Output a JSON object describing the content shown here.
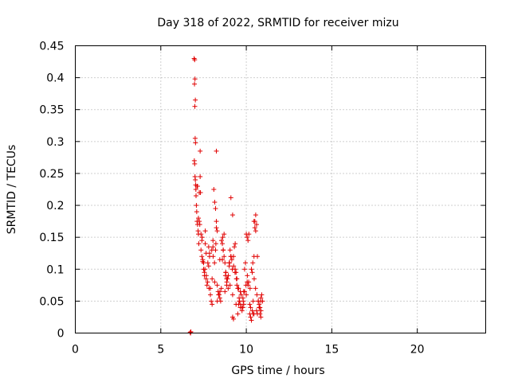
{
  "chart_data": {
    "type": "scatter",
    "title": "Day 318 of 2022, SRMTID for receiver mizu",
    "xlabel": "GPS time / hours",
    "ylabel": "SRMTID / TECUs",
    "xlim": [
      0,
      24
    ],
    "ylim": [
      0,
      0.45
    ],
    "xticks": [
      0,
      5,
      10,
      15,
      20
    ],
    "yticks": [
      0,
      0.05,
      0.1,
      0.15,
      0.2,
      0.25,
      0.3,
      0.35,
      0.4,
      0.45
    ],
    "xtick_labels": [
      "0",
      "5",
      "10",
      "15",
      "20"
    ],
    "ytick_labels": [
      "0",
      "0.05",
      "0.1",
      "0.15",
      "0.2",
      "0.25",
      "0.3",
      "0.35",
      "0.4",
      "0.45"
    ],
    "grid": true,
    "marker": "+",
    "color": "#e00000",
    "series": [
      {
        "name": "SRMTID",
        "x": [
          6.72,
          6.74,
          6.76,
          6.95,
          6.98,
          7.0,
          6.97,
          7.02,
          6.99,
          7.01,
          7.03,
          6.96,
          6.98,
          7.0,
          7.02,
          7.04,
          7.05,
          7.06,
          7.08,
          7.1,
          7.12,
          7.15,
          7.18,
          7.2,
          7.22,
          7.25,
          7.3,
          7.35,
          7.4,
          7.45,
          7.5,
          7.55,
          7.6,
          7.65,
          7.7,
          7.75,
          7.8,
          7.85,
          7.9,
          7.95,
          8.0,
          8.05,
          8.1,
          8.15,
          8.2,
          8.25,
          8.3,
          8.35,
          8.4,
          8.45,
          8.5,
          8.55,
          8.6,
          8.65,
          8.7,
          8.75,
          8.8,
          8.85,
          8.9,
          8.95,
          9.0,
          9.05,
          9.1,
          9.15,
          9.2,
          9.25,
          9.3,
          9.35,
          9.4,
          9.45,
          9.5,
          9.55,
          9.6,
          9.65,
          9.7,
          9.75,
          9.8,
          9.85,
          9.9,
          9.95,
          10.0,
          10.05,
          10.1,
          10.15,
          10.2,
          10.25,
          10.3,
          10.35,
          10.4,
          10.45,
          10.5,
          10.55,
          10.6,
          10.65,
          10.7,
          10.75,
          10.8,
          10.85,
          10.9,
          7.12,
          7.2,
          7.28,
          7.35,
          7.42,
          7.5,
          7.58,
          7.66,
          7.74,
          7.82,
          7.9,
          7.98,
          8.06,
          8.14,
          8.22,
          8.3,
          8.38,
          8.46,
          8.54,
          8.62,
          8.7,
          8.78,
          8.86,
          8.94,
          9.02,
          9.1,
          9.18,
          9.26,
          9.34,
          9.42,
          9.5,
          9.58,
          9.66,
          9.74,
          9.82,
          9.9,
          9.98,
          10.06,
          10.14,
          10.22,
          10.3,
          10.38,
          10.46,
          10.54,
          10.62,
          10.7,
          10.78,
          10.86,
          7.15,
          7.25,
          7.45,
          7.55,
          7.65,
          7.85,
          8.05,
          8.25,
          8.45,
          8.65,
          8.85,
          9.05,
          9.25,
          9.45,
          9.65,
          9.85,
          10.05,
          10.25,
          10.45,
          10.65,
          10.85,
          7.4,
          7.6,
          7.8,
          8.0,
          8.2,
          8.4,
          8.6,
          8.8,
          9.0,
          9.2,
          9.4,
          9.6,
          9.8,
          10.0,
          10.2,
          10.4,
          10.6,
          10.8,
          8.25,
          9.2,
          9.1,
          10.5,
          10.55,
          10.45,
          7.3,
          7.32,
          8.15,
          8.3,
          8.75,
          9.35,
          9.55,
          10.1,
          10.35,
          10.75,
          10.85,
          10.95
        ],
        "y": [
          0.001,
          0.0,
          0.002,
          0.43,
          0.428,
          0.398,
          0.39,
          0.365,
          0.355,
          0.305,
          0.298,
          0.27,
          0.265,
          0.245,
          0.24,
          0.232,
          0.225,
          0.215,
          0.2,
          0.19,
          0.175,
          0.17,
          0.16,
          0.155,
          0.14,
          0.22,
          0.285,
          0.13,
          0.12,
          0.112,
          0.1,
          0.09,
          0.14,
          0.125,
          0.075,
          0.11,
          0.105,
          0.12,
          0.07,
          0.05,
          0.045,
          0.135,
          0.225,
          0.205,
          0.195,
          0.165,
          0.16,
          0.065,
          0.06,
          0.055,
          0.05,
          0.145,
          0.14,
          0.13,
          0.155,
          0.11,
          0.095,
          0.075,
          0.085,
          0.09,
          0.11,
          0.13,
          0.12,
          0.115,
          0.025,
          0.022,
          0.135,
          0.14,
          0.095,
          0.085,
          0.03,
          0.045,
          0.05,
          0.04,
          0.06,
          0.035,
          0.04,
          0.065,
          0.1,
          0.11,
          0.155,
          0.15,
          0.145,
          0.155,
          0.03,
          0.025,
          0.02,
          0.035,
          0.03,
          0.12,
          0.175,
          0.185,
          0.17,
          0.12,
          0.05,
          0.045,
          0.04,
          0.055,
          0.06,
          0.23,
          0.18,
          0.17,
          0.155,
          0.15,
          0.11,
          0.1,
          0.09,
          0.08,
          0.07,
          0.06,
          0.13,
          0.12,
          0.11,
          0.14,
          0.075,
          0.06,
          0.065,
          0.07,
          0.15,
          0.12,
          0.09,
          0.08,
          0.07,
          0.11,
          0.12,
          0.1,
          0.105,
          0.095,
          0.085,
          0.07,
          0.055,
          0.045,
          0.04,
          0.05,
          0.065,
          0.075,
          0.09,
          0.08,
          0.07,
          0.1,
          0.11,
          0.085,
          0.07,
          0.06,
          0.05,
          0.04,
          0.035,
          0.23,
          0.175,
          0.115,
          0.095,
          0.085,
          0.125,
          0.145,
          0.175,
          0.115,
          0.13,
          0.085,
          0.075,
          0.12,
          0.075,
          0.065,
          0.045,
          0.08,
          0.04,
          0.03,
          0.03,
          0.05,
          0.145,
          0.16,
          0.135,
          0.085,
          0.13,
          0.06,
          0.115,
          0.095,
          0.105,
          0.06,
          0.045,
          0.05,
          0.055,
          0.06,
          0.045,
          0.05,
          0.035,
          0.03,
          0.285,
          0.185,
          0.212,
          0.165,
          0.16,
          0.175,
          0.245,
          0.22,
          0.08,
          0.05,
          0.065,
          0.1,
          0.07,
          0.075,
          0.095,
          0.04,
          0.025,
          0.05
        ]
      }
    ]
  }
}
